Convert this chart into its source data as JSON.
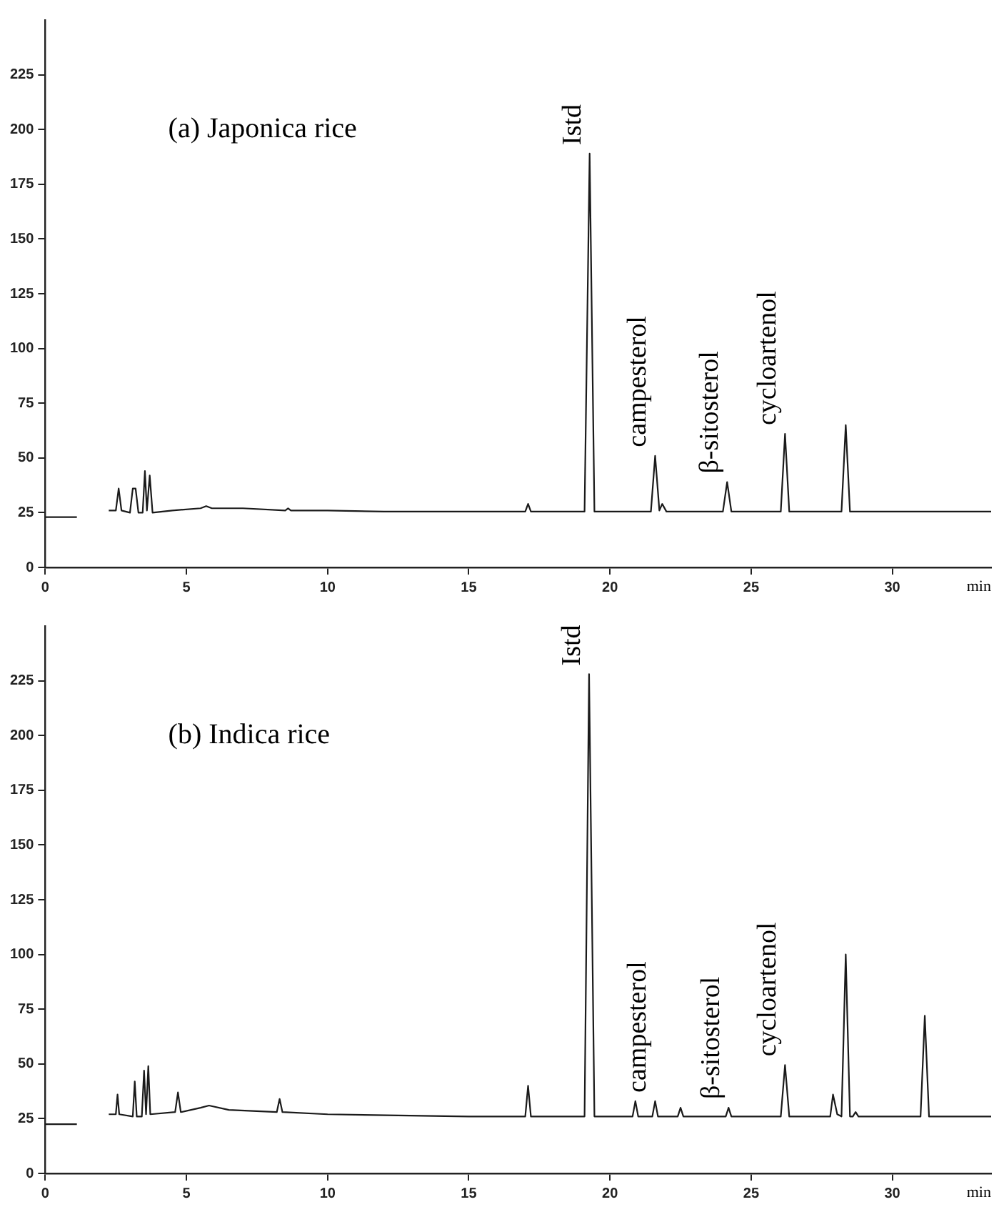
{
  "chart_data": [
    {
      "type": "line",
      "title": "(a) Japonica rice",
      "xlabel": "min",
      "xlim": [
        0,
        33.5
      ],
      "xticks": [
        0,
        5,
        10,
        15,
        20,
        25,
        30
      ],
      "ylim": [
        0,
        250
      ],
      "yticks": [
        0,
        25,
        50,
        75,
        100,
        125,
        150,
        175,
        200,
        225
      ],
      "grid": false,
      "legend": false,
      "marker": "none",
      "line_style": "solid",
      "series": [
        {
          "color": "#1a1a1a",
          "x": [
            0,
            1.12,
            1.13,
            1.6,
            2.2,
            2.25,
            2.5,
            2.6,
            2.7,
            3.0,
            3.1,
            3.2,
            3.3,
            3.45,
            3.53,
            3.6,
            3.7,
            3.8,
            4.5,
            5.5,
            5.7,
            5.9,
            7,
            8.5,
            8.6,
            8.7,
            10,
            12,
            15,
            17.0,
            17.1,
            17.2,
            19.1,
            19.28,
            19.45,
            21.45,
            21.6,
            21.75,
            21.85,
            22,
            24.0,
            24.15,
            24.3,
            26.05,
            26.2,
            26.35,
            28.2,
            28.35,
            28.5,
            33.5
          ],
          "values": [
            23,
            23,
            null,
            null,
            null,
            26,
            26,
            36,
            26,
            25,
            36,
            36,
            25,
            25,
            44,
            26,
            42,
            25,
            26,
            27,
            28,
            27,
            27,
            26,
            27,
            26,
            26,
            25.5,
            25.5,
            25.5,
            29,
            25.5,
            25.5,
            189,
            25.5,
            25.5,
            51,
            26,
            29,
            25.5,
            25.5,
            39,
            25.5,
            25.5,
            61,
            25.5,
            25.5,
            65,
            25.5,
            25.5
          ]
        }
      ],
      "annotations": [
        {
          "text": "Istd",
          "x": 19.28,
          "y": 189
        },
        {
          "text": "campesterol",
          "x": 21.6,
          "y": 51
        },
        {
          "text": "β-sitosterol",
          "x": 24.15,
          "y": 39
        },
        {
          "text": "cycloartenol",
          "x": 26.2,
          "y": 61
        }
      ]
    },
    {
      "type": "line",
      "title": "(b) Indica rice",
      "xlabel": "min",
      "xlim": [
        0,
        33.5
      ],
      "xticks": [
        0,
        5,
        10,
        15,
        20,
        25,
        30
      ],
      "ylim": [
        0,
        250
      ],
      "yticks": [
        0,
        25,
        50,
        75,
        100,
        125,
        150,
        175,
        200,
        225
      ],
      "grid": false,
      "legend": false,
      "marker": "none",
      "line_style": "solid",
      "series": [
        {
          "color": "#1a1a1a",
          "x": [
            0,
            1.12,
            1.13,
            1.6,
            2.2,
            2.25,
            2.5,
            2.56,
            2.62,
            3.1,
            3.17,
            3.24,
            3.42,
            3.5,
            3.57,
            3.6,
            3.65,
            3.72,
            4.6,
            4.7,
            4.8,
            5.5,
            5.8,
            6.5,
            8.2,
            8.3,
            8.4,
            10,
            12.5,
            15,
            17.0,
            17.1,
            17.2,
            19.1,
            19.26,
            19.45,
            20.8,
            20.9,
            21.0,
            21.5,
            21.6,
            21.7,
            22.4,
            22.5,
            22.6,
            24.1,
            24.2,
            24.3,
            26.05,
            26.2,
            26.35,
            27.8,
            27.9,
            28.05,
            28.2,
            28.35,
            28.5,
            28.6,
            28.7,
            28.8,
            31.0,
            31.15,
            31.3,
            33.5
          ],
          "values": [
            22.5,
            22.5,
            null,
            null,
            null,
            27,
            27,
            36,
            27,
            26,
            42,
            26,
            26,
            47,
            27,
            27,
            49,
            27,
            28,
            37,
            28,
            30,
            31,
            29,
            28,
            34,
            28,
            27,
            26.5,
            26,
            26,
            40,
            26,
            26,
            228,
            26,
            26,
            33,
            26,
            26,
            33,
            26,
            26,
            30,
            26,
            26,
            30,
            26,
            26,
            49.5,
            26,
            26,
            36,
            27,
            26,
            100,
            26,
            26,
            28,
            26,
            26,
            72,
            26,
            26
          ]
        }
      ],
      "annotations": [
        {
          "text": "Istd",
          "x": 19.26,
          "y": 228
        },
        {
          "text": "campesterol",
          "x": 21.6,
          "y": 33
        },
        {
          "text": "β-sitosterol",
          "x": 24.2,
          "y": 30
        },
        {
          "text": "cycloartenol",
          "x": 26.2,
          "y": 49.5
        }
      ]
    }
  ]
}
